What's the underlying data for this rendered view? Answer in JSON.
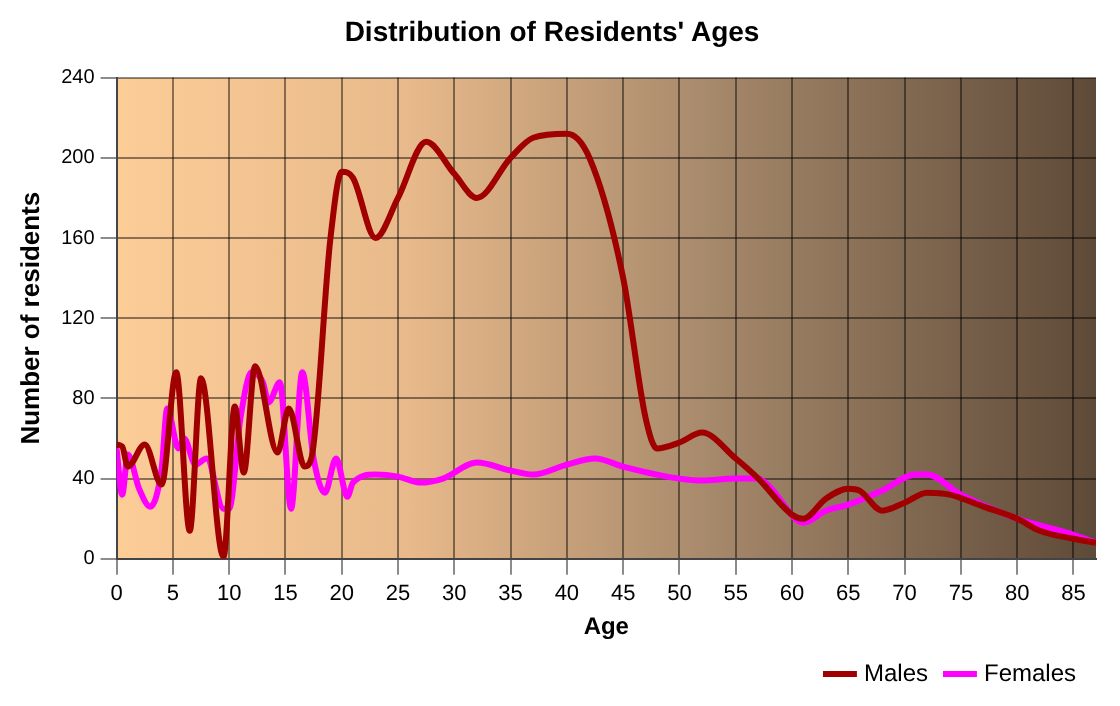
{
  "chart_data": {
    "type": "line",
    "title": "Distribution of Residents' Ages",
    "xlabel": "Age",
    "ylabel": "Number of residents",
    "xlim": [
      0,
      87
    ],
    "xticks": [
      0,
      5,
      10,
      15,
      20,
      25,
      30,
      35,
      40,
      45,
      50,
      55,
      60,
      65,
      70,
      75,
      80,
      85
    ],
    "ylim": [
      0,
      240
    ],
    "yticks": [
      0,
      40,
      80,
      120,
      160,
      200,
      240
    ],
    "grid": true,
    "legend": "bottom right",
    "marker": "none",
    "line_style": "solid",
    "series": [
      {
        "name": "Males",
        "color": "#a00000",
        "x": [
          0,
          0.5,
          1,
          2.5,
          4,
          5.3,
          6.5,
          7.5,
          9.5,
          10.5,
          11.3,
          12.3,
          14.3,
          15.3,
          16.7,
          17.3,
          19,
          20,
          21,
          23,
          25,
          27.5,
          30,
          32,
          35,
          37,
          40,
          42,
          45,
          47,
          48,
          50,
          52,
          55,
          57,
          60,
          61,
          63,
          65,
          66,
          68,
          70,
          72,
          74,
          77,
          80,
          82,
          85,
          87
        ],
        "values": [
          57,
          56,
          46,
          57,
          37,
          93,
          14,
          90,
          1,
          76,
          43,
          96,
          53,
          75,
          46,
          50,
          160,
          193,
          190,
          160,
          180,
          208,
          192,
          180,
          200,
          210,
          212,
          200,
          140,
          70,
          55,
          58,
          63,
          50,
          40,
          22,
          20,
          30,
          35,
          34,
          24,
          28,
          33,
          32,
          26,
          20,
          14,
          10,
          8
        ]
      },
      {
        "name": "Females",
        "color": "#ff00ff",
        "x": [
          0,
          0.5,
          1,
          2,
          3,
          4,
          4.5,
          5.5,
          6,
          7,
          8,
          9.5,
          10,
          11,
          12,
          13,
          13.5,
          14.5,
          15.5,
          16.5,
          17.5,
          18.5,
          19.5,
          20.5,
          21,
          23,
          25,
          27,
          29,
          32,
          35,
          37,
          40,
          42.5,
          45,
          48,
          50,
          52,
          55,
          57,
          58,
          61,
          63,
          65,
          68,
          71,
          72,
          75,
          80,
          85,
          87
        ],
        "values": [
          55,
          32,
          52,
          35,
          26,
          45,
          75,
          55,
          60,
          47,
          50,
          25,
          25,
          70,
          93,
          88,
          78,
          88,
          25,
          93,
          50,
          33,
          50,
          31,
          38,
          42,
          41,
          38,
          40,
          48,
          44,
          42,
          47,
          50,
          46,
          42,
          40,
          39,
          40,
          40,
          36,
          18,
          24,
          27,
          34,
          42,
          42,
          32,
          20,
          12,
          8
        ]
      }
    ]
  }
}
